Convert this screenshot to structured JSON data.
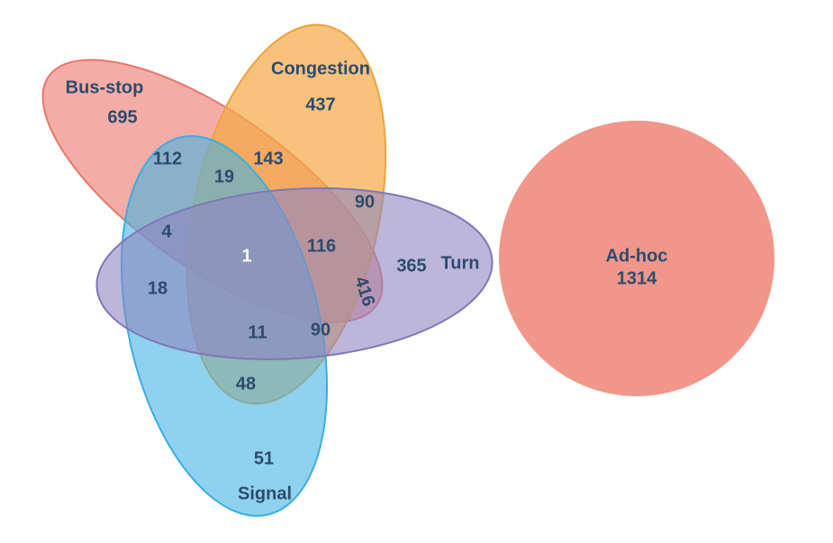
{
  "sets": [
    {
      "label": "Bus-stop"
    },
    {
      "label": "Congestion"
    },
    {
      "label": "Turn"
    },
    {
      "label": "Signal"
    },
    {
      "label": "Ad-hoc"
    }
  ],
  "counts": [
    695,
    437,
    365,
    51,
    1314,
    112,
    143,
    19,
    90,
    4,
    1,
    116,
    416,
    18,
    11,
    90,
    48
  ]
}
